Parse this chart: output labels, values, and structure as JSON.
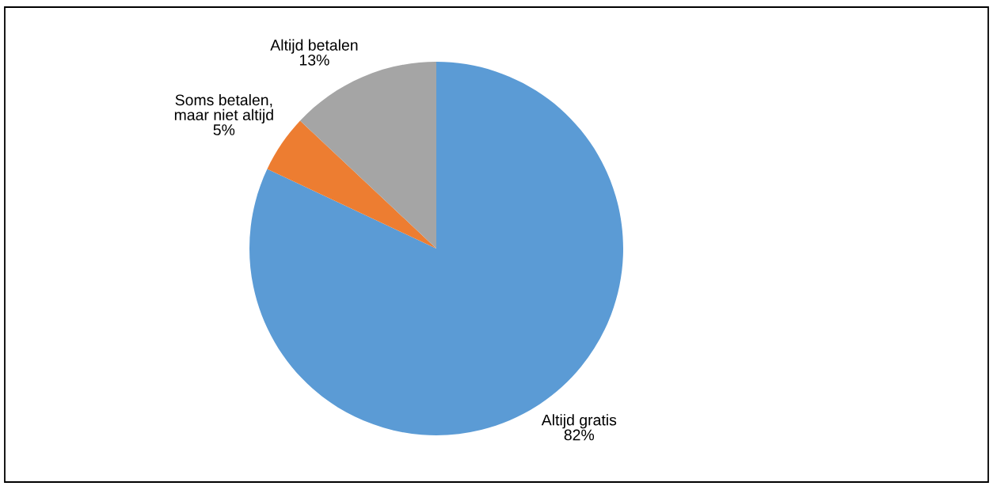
{
  "chart_data": {
    "type": "pie",
    "categories": [
      "Altijd gratis",
      "Soms betalen,\nmaar niet altijd",
      "Altijd betalen"
    ],
    "values": [
      82,
      5,
      13
    ],
    "value_labels": [
      "82%",
      "5%",
      "13%"
    ],
    "colors": [
      "#5b9bd5",
      "#ed7d31",
      "#a5a5a5"
    ]
  }
}
